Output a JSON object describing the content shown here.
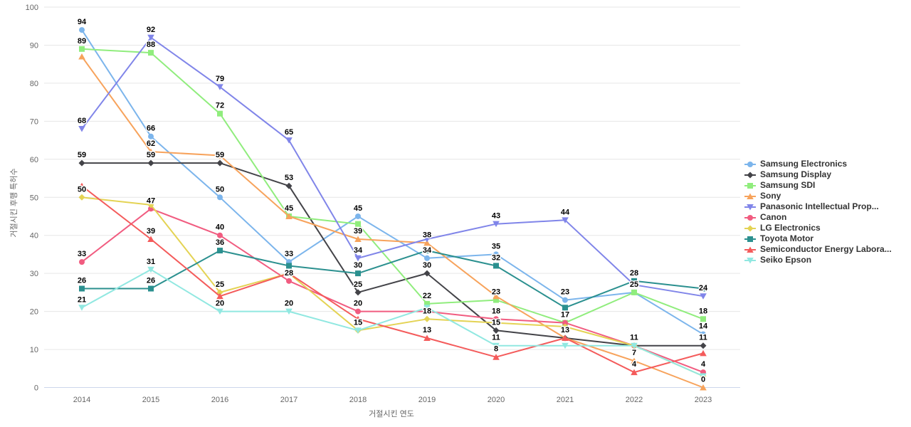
{
  "chart": {
    "background": "#ffffff",
    "grid_color": "#e6e6e6",
    "axis_line_color": "#ccd6eb",
    "tick_text_color": "#666666",
    "legend_text_color": "#333333",
    "data_label_color": "#000000"
  },
  "chart_data": {
    "type": "line",
    "title": "",
    "xlabel": "거절시킨 연도",
    "ylabel": "거절시킨 후행 특허수",
    "x": [
      2014,
      2015,
      2016,
      2017,
      2018,
      2019,
      2020,
      2021,
      2022,
      2023
    ],
    "ylim": [
      0,
      100
    ],
    "yticks": [
      0,
      10,
      20,
      30,
      40,
      50,
      60,
      70,
      80,
      90,
      100
    ],
    "grid": true,
    "legend_position": "right",
    "series": [
      {
        "name": "Samsung Electronics",
        "color": "#7cb5ec",
        "marker": "circle",
        "values": [
          94,
          66,
          50,
          33,
          45,
          34,
          35,
          23,
          25,
          14
        ],
        "labels_shown": [
          true,
          true,
          true,
          true,
          true,
          true,
          true,
          true,
          false,
          true
        ]
      },
      {
        "name": "Samsung Display",
        "color": "#434348",
        "marker": "diamond",
        "values": [
          59,
          59,
          59,
          53,
          25,
          30,
          15,
          13,
          11,
          11
        ],
        "labels_shown": [
          true,
          true,
          true,
          true,
          true,
          true,
          true,
          false,
          true,
          true
        ]
      },
      {
        "name": "Samsung SDI",
        "color": "#90ed7d",
        "marker": "square",
        "values": [
          89,
          88,
          72,
          45,
          43,
          22,
          23,
          17,
          25,
          18
        ],
        "labels_shown": [
          true,
          true,
          true,
          true,
          false,
          true,
          true,
          false,
          true,
          true
        ]
      },
      {
        "name": "Sony",
        "color": "#f7a35c",
        "marker": "triangle",
        "values": [
          87,
          62,
          61,
          45,
          39,
          38,
          24,
          13,
          7,
          0
        ],
        "labels_shown": [
          false,
          true,
          false,
          false,
          true,
          true,
          false,
          false,
          true,
          true
        ]
      },
      {
        "name": "Panasonic Intellectual Prop...",
        "color": "#8085e9",
        "marker": "triangle-down",
        "values": [
          68,
          92,
          79,
          65,
          34,
          39,
          43,
          44,
          27,
          24
        ],
        "labels_shown": [
          true,
          true,
          true,
          true,
          true,
          false,
          true,
          true,
          false,
          true
        ]
      },
      {
        "name": "Canon",
        "color": "#f15c80",
        "marker": "circle",
        "values": [
          33,
          47,
          40,
          28,
          20,
          20,
          18,
          17,
          11,
          4
        ],
        "labels_shown": [
          true,
          true,
          true,
          true,
          true,
          false,
          true,
          true,
          false,
          true
        ]
      },
      {
        "name": "LG Electronics",
        "color": "#e4d354",
        "marker": "diamond",
        "values": [
          50,
          48,
          25,
          30,
          15,
          18,
          17,
          16,
          11,
          3
        ],
        "labels_shown": [
          true,
          false,
          true,
          false,
          false,
          true,
          false,
          false,
          false,
          false
        ]
      },
      {
        "name": "Toyota Motor",
        "color": "#2b908f",
        "marker": "square",
        "values": [
          26,
          26,
          36,
          32,
          30,
          36,
          32,
          21,
          28,
          26
        ],
        "labels_shown": [
          true,
          true,
          true,
          false,
          true,
          false,
          true,
          false,
          true,
          false
        ]
      },
      {
        "name": "Semiconductor Energy Labora...",
        "color": "#f45b5b",
        "marker": "triangle",
        "values": [
          53,
          39,
          24,
          30,
          18,
          13,
          8,
          13,
          4,
          9
        ],
        "labels_shown": [
          false,
          true,
          false,
          false,
          false,
          true,
          true,
          true,
          true,
          false
        ]
      },
      {
        "name": "Seiko Epson",
        "color": "#91e8e1",
        "marker": "triangle-down",
        "values": [
          21,
          31,
          20,
          20,
          15,
          21,
          11,
          11,
          11,
          3
        ],
        "labels_shown": [
          true,
          true,
          true,
          true,
          true,
          false,
          true,
          false,
          false,
          false
        ]
      }
    ]
  }
}
